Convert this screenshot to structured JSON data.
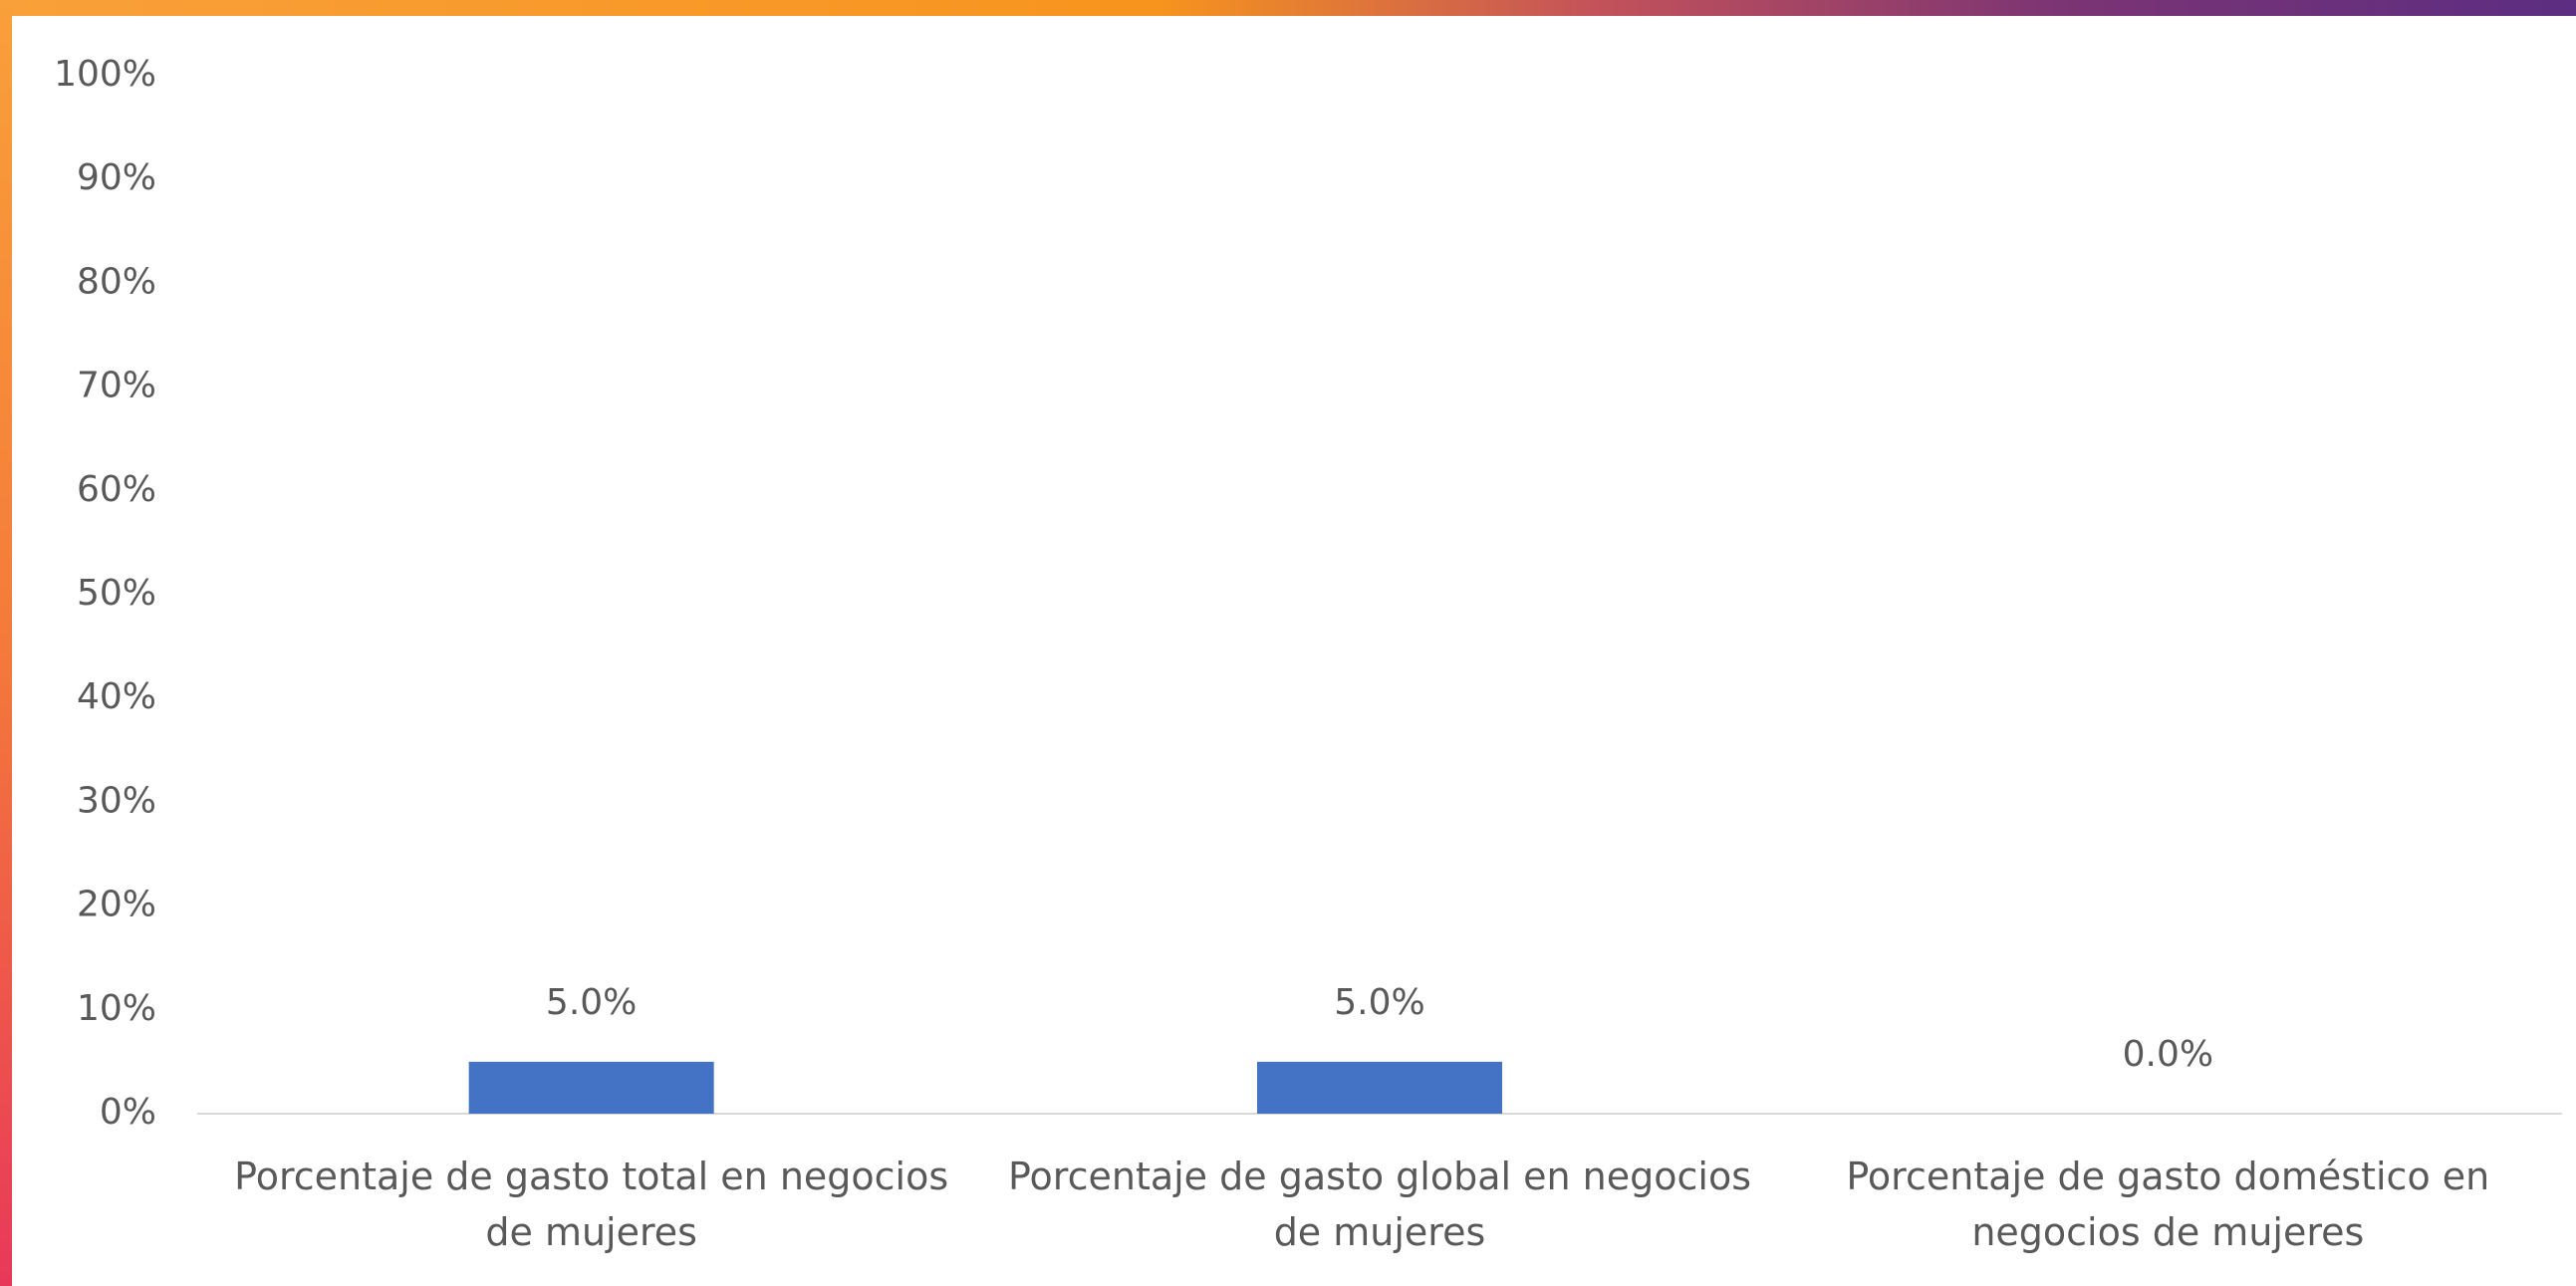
{
  "chart_data": {
    "type": "bar",
    "categories": [
      "Porcentaje de gasto total en negocios de mujeres",
      "Porcentaje de gasto global en negocios de mujeres",
      "Porcentaje de gasto doméstico en negocios de mujeres"
    ],
    "values": [
      5.0,
      5.0,
      0.0
    ],
    "value_labels": [
      "5.0%",
      "5.0%",
      "0.0%"
    ],
    "color": "#4472c4",
    "ylim": [
      0,
      100
    ],
    "yticks": [
      {
        "value": 0,
        "label": "0%"
      },
      {
        "value": 10,
        "label": "10%"
      },
      {
        "value": 20,
        "label": "20%"
      },
      {
        "value": 30,
        "label": "30%"
      },
      {
        "value": 40,
        "label": "40%"
      },
      {
        "value": 50,
        "label": "50%"
      },
      {
        "value": 60,
        "label": "60%"
      },
      {
        "value": 70,
        "label": "70%"
      },
      {
        "value": 80,
        "label": "80%"
      },
      {
        "value": 90,
        "label": "90%"
      },
      {
        "value": 100,
        "label": "100%"
      }
    ],
    "grid": false
  }
}
